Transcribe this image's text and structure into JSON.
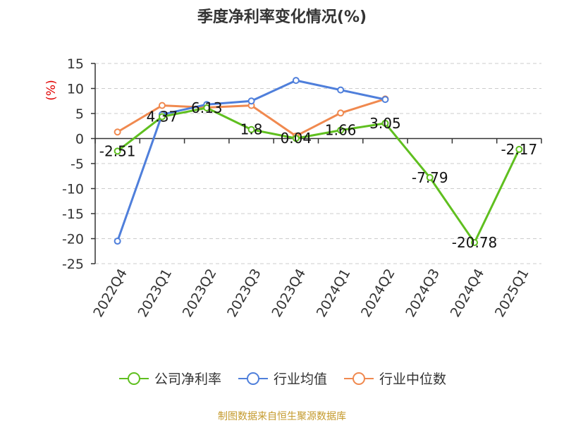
{
  "title": "季度净利率变化情况(%)",
  "source": "制图数据来自恒生聚源数据库",
  "colors": {
    "company": "#5fbf1f",
    "avg": "#4f7fdb",
    "median": "#f0894f",
    "unit": "#e00000"
  },
  "chart_data": {
    "type": "line",
    "title": "季度净利率变化情况(%)",
    "ylabel": "(%)",
    "ylim": [
      -25,
      15
    ],
    "yticks": [
      15,
      10,
      5,
      0,
      -5,
      -10,
      -15,
      -20,
      -25
    ],
    "grid": true,
    "legend_position": "bottom",
    "categories": [
      "2022Q4",
      "2023Q1",
      "2023Q2",
      "2023Q3",
      "2023Q4",
      "2024Q1",
      "2024Q2",
      "2024Q3",
      "2024Q4",
      "2025Q1"
    ],
    "series": [
      {
        "name": "公司净利率",
        "values": [
          -2.51,
          4.37,
          6.13,
          1.8,
          0.04,
          1.66,
          3.05,
          -7.79,
          -20.78,
          -2.17
        ],
        "labels": [
          "-2.51",
          "4.37",
          "6.13",
          "1.8",
          "0.04",
          "1.66",
          "3.05",
          "-7.79",
          "-20.78",
          "-2.17"
        ]
      },
      {
        "name": "行业均值",
        "values": [
          -20.5,
          4.8,
          6.8,
          7.5,
          11.6,
          9.7,
          7.8,
          null,
          null,
          null
        ]
      },
      {
        "name": "行业中位数",
        "values": [
          1.3,
          6.6,
          6.2,
          6.6,
          0.5,
          5.1,
          7.9,
          null,
          null,
          null
        ]
      }
    ]
  }
}
